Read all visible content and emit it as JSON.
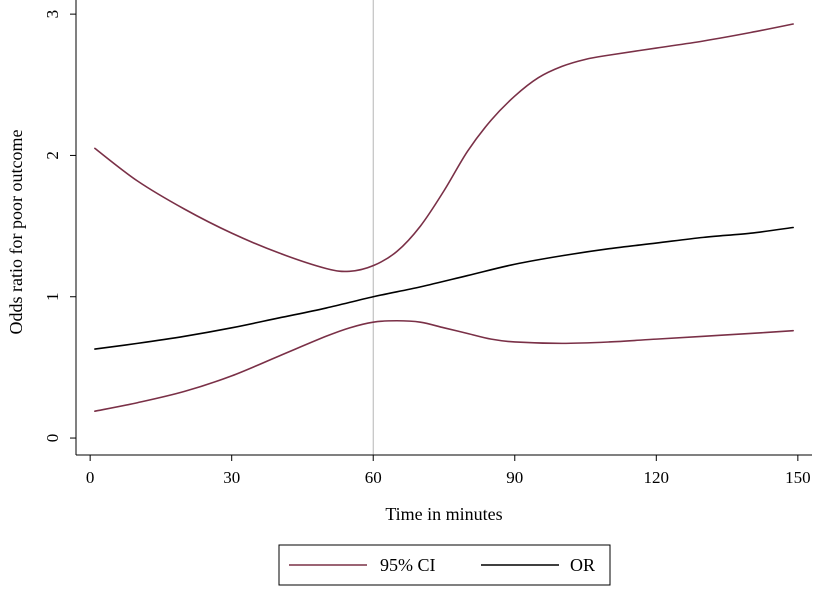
{
  "chart_data": {
    "type": "line",
    "xlabel": "Time in minutes",
    "ylabel": "Odds ratio for poor outcome",
    "xlim": [
      -3,
      153
    ],
    "ylim": [
      -0.12,
      3.1
    ],
    "x_ticks": [
      0,
      30,
      60,
      90,
      120,
      150
    ],
    "y_ticks": [
      0,
      1,
      2,
      3
    ],
    "reference_line_x": 60,
    "legend_position": "bottom",
    "series": [
      {
        "name": "95% CI",
        "role": "upper",
        "color": "#7a3047",
        "x": [
          1,
          10,
          20,
          30,
          40,
          50,
          55,
          60,
          65,
          70,
          75,
          80,
          85,
          90,
          95,
          100,
          105,
          110,
          120,
          130,
          140,
          149
        ],
        "y": [
          2.05,
          1.82,
          1.62,
          1.45,
          1.31,
          1.2,
          1.18,
          1.22,
          1.32,
          1.5,
          1.75,
          2.03,
          2.25,
          2.42,
          2.55,
          2.63,
          2.68,
          2.71,
          2.76,
          2.81,
          2.87,
          2.93
        ]
      },
      {
        "name": "95% CI",
        "role": "lower",
        "color": "#7a3047",
        "x": [
          1,
          10,
          20,
          30,
          40,
          50,
          55,
          60,
          65,
          70,
          75,
          80,
          85,
          90,
          100,
          110,
          120,
          130,
          140,
          149
        ],
        "y": [
          0.19,
          0.25,
          0.33,
          0.44,
          0.58,
          0.72,
          0.78,
          0.82,
          0.83,
          0.82,
          0.78,
          0.74,
          0.7,
          0.68,
          0.67,
          0.68,
          0.7,
          0.72,
          0.74,
          0.76
        ]
      },
      {
        "name": "OR",
        "role": "estimate",
        "color": "#000000",
        "x": [
          1,
          10,
          20,
          30,
          40,
          50,
          60,
          70,
          80,
          90,
          100,
          110,
          120,
          130,
          140,
          149
        ],
        "y": [
          0.63,
          0.67,
          0.72,
          0.78,
          0.85,
          0.92,
          1.0,
          1.07,
          1.15,
          1.23,
          1.29,
          1.34,
          1.38,
          1.42,
          1.45,
          1.49
        ]
      }
    ],
    "legend": [
      {
        "label": "95% CI",
        "color": "#7a3047"
      },
      {
        "label": "OR",
        "color": "#000000"
      }
    ],
    "axis_color": "#000000",
    "reference_line_color": "#b5b5b5"
  }
}
